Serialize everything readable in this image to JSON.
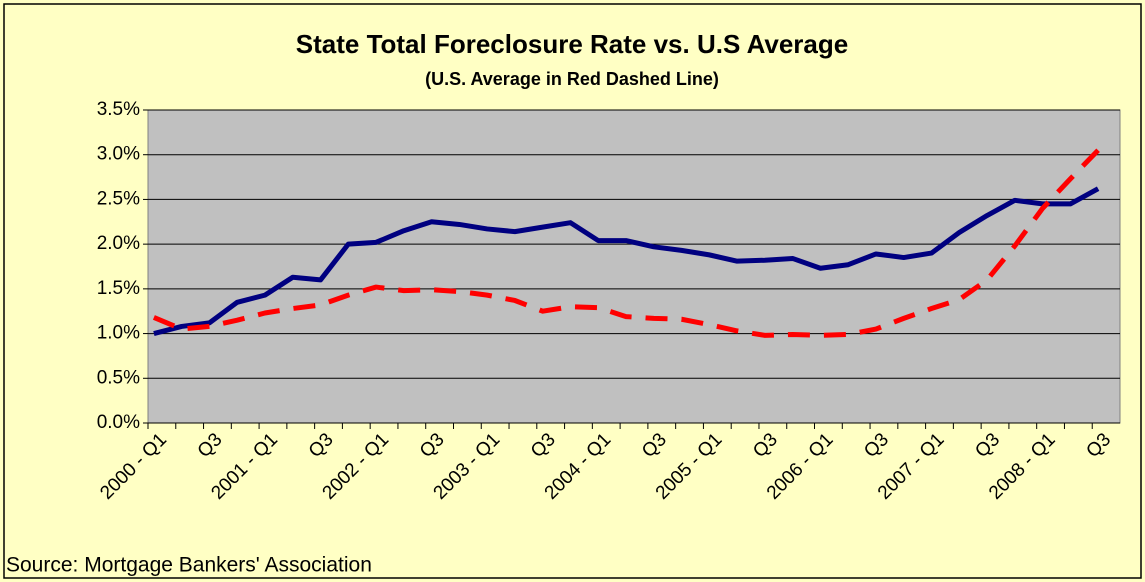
{
  "chart_data": {
    "type": "line",
    "title": "State Total Foreclosure Rate vs. U.S Average",
    "subtitle": "(U.S. Average in Red Dashed Line)",
    "source": "Source: Mortgage Bankers' Association",
    "categories": [
      "2000 - Q1",
      null,
      "Q3",
      null,
      "2001 - Q1",
      null,
      "Q3",
      null,
      "2002 - Q1",
      null,
      "Q3",
      null,
      "2003 - Q1",
      null,
      "Q3",
      null,
      "2004 - Q1",
      null,
      "Q3",
      null,
      "2005 - Q1",
      null,
      "Q3",
      null,
      "2006 - Q1",
      null,
      "Q3",
      null,
      "2007 - Q1",
      null,
      "Q3",
      null,
      "2008 - Q1",
      null,
      "Q3"
    ],
    "series": [
      {
        "color": "#000080",
        "dashed": false,
        "values": [
          1.0,
          1.08,
          1.12,
          1.35,
          1.43,
          1.63,
          1.6,
          2.0,
          2.02,
          2.15,
          2.25,
          2.22,
          2.17,
          2.14,
          2.19,
          2.24,
          2.04,
          2.04,
          1.97,
          1.93,
          1.88,
          1.81,
          1.82,
          1.84,
          1.73,
          1.77,
          1.89,
          1.85,
          1.9,
          2.13,
          2.32,
          2.49,
          2.45,
          2.45,
          2.62
        ]
      },
      {
        "color": "#ff0000",
        "dashed": true,
        "values": [
          1.18,
          1.05,
          1.08,
          1.15,
          1.23,
          1.28,
          1.32,
          1.43,
          1.52,
          1.48,
          1.49,
          1.47,
          1.43,
          1.37,
          1.25,
          1.3,
          1.29,
          1.19,
          1.17,
          1.16,
          1.1,
          1.03,
          0.98,
          0.99,
          0.98,
          0.99,
          1.05,
          1.17,
          1.28,
          1.38,
          1.6,
          1.98,
          2.4,
          2.73,
          3.05
        ]
      }
    ],
    "ylim": [
      0,
      3.5
    ],
    "yticks": [
      {
        "value": 0,
        "label": "0.0%"
      },
      {
        "value": 0.5,
        "label": "0.5%"
      },
      {
        "value": 1,
        "label": "1.0%"
      },
      {
        "value": 1.5,
        "label": "1.5%"
      },
      {
        "value": 2,
        "label": "2.0%"
      },
      {
        "value": 2.5,
        "label": "2.5%"
      },
      {
        "value": 3,
        "label": "3.0%"
      },
      {
        "value": 3.5,
        "label": "3.5%"
      }
    ],
    "grid": true,
    "plot_color": "#c0c0c0"
  }
}
